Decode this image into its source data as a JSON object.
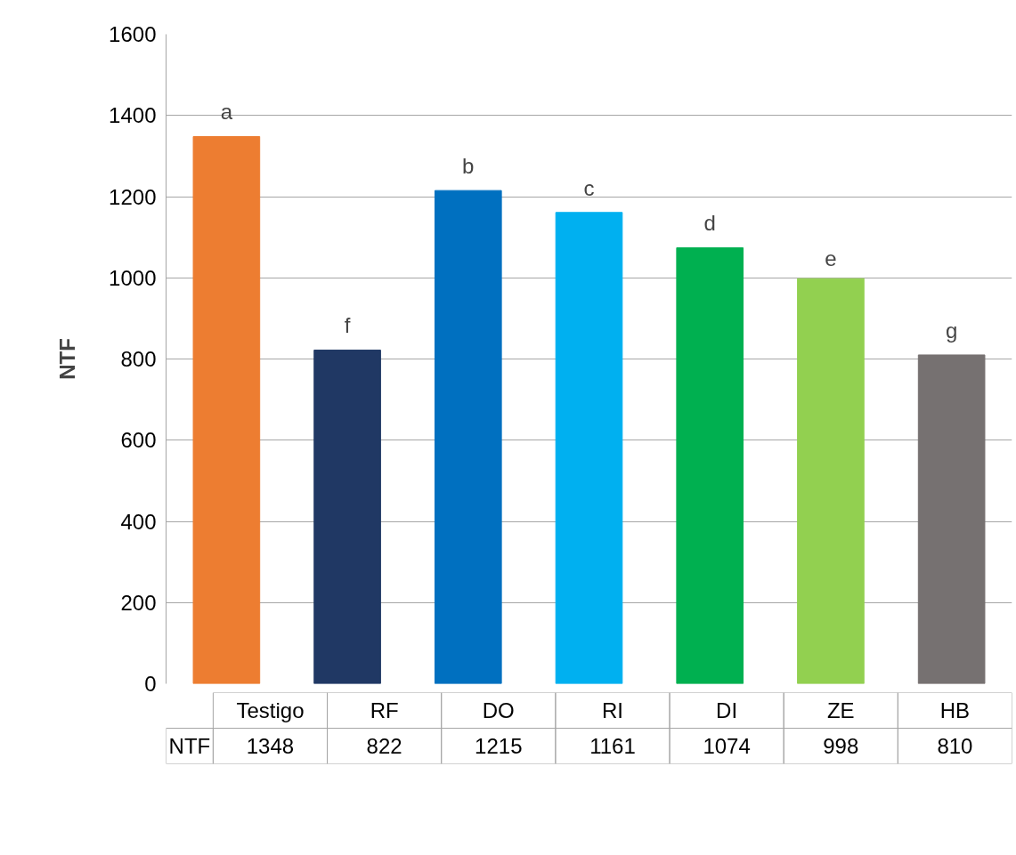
{
  "chart_data": {
    "type": "bar",
    "ylabel": "NTF",
    "categories": [
      "Testigo",
      "RF",
      "DO",
      "RI",
      "DI",
      "ZE",
      "HB"
    ],
    "series": [
      {
        "name": "NTF",
        "values": [
          1348,
          822,
          1215,
          1161,
          1074,
          998,
          810
        ]
      }
    ],
    "colors": [
      "#ed7d31",
      "#203864",
      "#0070c0",
      "#00b0f0",
      "#00b050",
      "#92d050",
      "#767171"
    ],
    "ylim": [
      0,
      1600
    ],
    "yticks": [
      0,
      200,
      400,
      600,
      800,
      1000,
      1200,
      1400,
      1600
    ],
    "grid": "y",
    "legend": false,
    "data_labels": true,
    "annotations": [
      "a",
      "f",
      "b",
      "c",
      "d",
      "e",
      "g"
    ]
  }
}
